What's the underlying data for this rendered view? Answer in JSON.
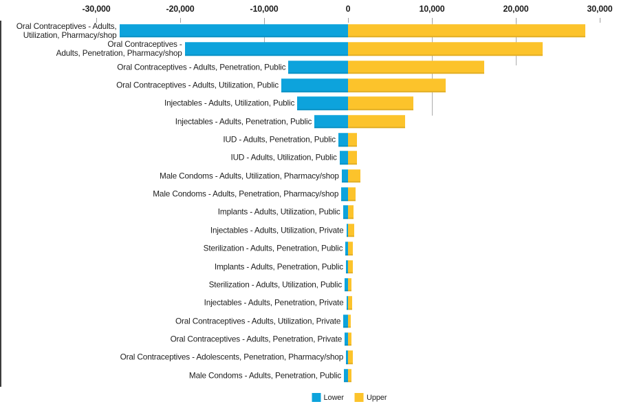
{
  "chart_data": {
    "type": "bar",
    "variant": "tornado",
    "orientation": "horizontal",
    "title": "",
    "xlabel": "",
    "ylabel": "",
    "axis_position": "top",
    "xlim": [
      -33000,
      33000
    ],
    "grid": "partial-top-stubs",
    "legend_position": "bottom-center",
    "colors": {
      "lower": "#0da3dc",
      "upper": "#fcc32b",
      "zero_line": "#3d3d3d",
      "tick": "#9c9c9c",
      "text": "#1d1d1d"
    },
    "x_ticks": [
      {
        "value": -30000,
        "label": "-30,000"
      },
      {
        "value": -20000,
        "label": "-20,000"
      },
      {
        "value": -10000,
        "label": "-10,000"
      },
      {
        "value": 0,
        "label": "0"
      },
      {
        "value": 10000,
        "label": "10,000"
      },
      {
        "value": 20000,
        "label": "20,000"
      },
      {
        "value": 30000,
        "label": "30,000"
      }
    ],
    "series": [
      {
        "name": "Lower",
        "color": "#0da3dc"
      },
      {
        "name": "Upper",
        "color": "#fcc32b"
      }
    ],
    "rows": [
      {
        "label": "Oral Contraceptives - Adults,\nUtilization, Pharmacy/shop",
        "lower": -27250,
        "upper": 28300
      },
      {
        "label": "Oral Contraceptives -\nAdults, Penetration, Pharmacy/shop",
        "lower": -19450,
        "upper": 23200
      },
      {
        "label": "Oral Contraceptives - Adults, Penetration, Public",
        "lower": -7100,
        "upper": 16250
      },
      {
        "label": "Oral Contraceptives - Adults, Utilization, Public",
        "lower": -7950,
        "upper": 11600
      },
      {
        "label": "Injectables - Adults, Utilization, Public",
        "lower": -6050,
        "upper": 7800
      },
      {
        "label": "Injectables - Adults, Penetration, Public",
        "lower": -4000,
        "upper": 6800
      },
      {
        "label": "IUD - Adults, Penetration, Public",
        "lower": -1150,
        "upper": 1100
      },
      {
        "label": "IUD - Adults, Utilization, Public",
        "lower": -1000,
        "upper": 1100
      },
      {
        "label": "Male Condoms - Adults, Utilization, Pharmacy/shop",
        "lower": -750,
        "upper": 1500
      },
      {
        "label": "Male Condoms - Adults, Penetration, Pharmacy/shop",
        "lower": -800,
        "upper": 900
      },
      {
        "label": "Implants - Adults, Utilization, Public",
        "lower": -600,
        "upper": 650
      },
      {
        "label": "Injectables - Adults, Utilization, Private",
        "lower": -200,
        "upper": 750
      },
      {
        "label": "Sterilization - Adults, Penetration, Public",
        "lower": -300,
        "upper": 550
      },
      {
        "label": "Implants - Adults, Penetration, Public",
        "lower": -250,
        "upper": 550
      },
      {
        "label": "Sterilization - Adults, Utilization, Public",
        "lower": -400,
        "upper": 420
      },
      {
        "label": "Injectables - Adults, Penetration, Private",
        "lower": -200,
        "upper": 500
      },
      {
        "label": "Oral Contraceptives - Adults, Utilization, Private",
        "lower": -550,
        "upper": 350
      },
      {
        "label": "Oral Contraceptives - Adults, Penetration, Private",
        "lower": -400,
        "upper": 420
      },
      {
        "label": "Oral Contraceptives - Adolescents, Penetration, Pharmacy/shop",
        "lower": -230,
        "upper": 570
      },
      {
        "label": "Male Condoms - Adults, Penetration, Public",
        "lower": -480,
        "upper": 420
      }
    ]
  }
}
